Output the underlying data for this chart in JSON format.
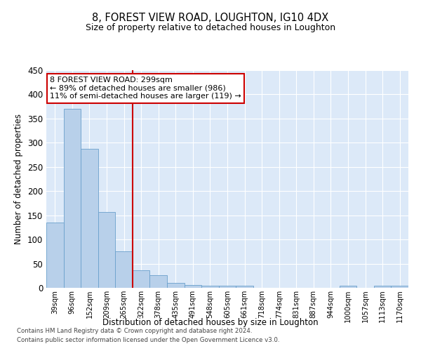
{
  "title": "8, FOREST VIEW ROAD, LOUGHTON, IG10 4DX",
  "subtitle": "Size of property relative to detached houses in Loughton",
  "xlabel": "Distribution of detached houses by size in Loughton",
  "ylabel": "Number of detached properties",
  "footnote1": "Contains HM Land Registry data © Crown copyright and database right 2024.",
  "footnote2": "Contains public sector information licensed under the Open Government Licence v3.0.",
  "annotation_line1": "8 FOREST VIEW ROAD: 299sqm",
  "annotation_line2": "← 89% of detached houses are smaller (986)",
  "annotation_line3": "11% of semi-detached houses are larger (119) →",
  "bar_labels": [
    "39sqm",
    "96sqm",
    "152sqm",
    "209sqm",
    "265sqm",
    "322sqm",
    "378sqm",
    "435sqm",
    "491sqm",
    "548sqm",
    "605sqm",
    "661sqm",
    "718sqm",
    "774sqm",
    "831sqm",
    "887sqm",
    "944sqm",
    "1000sqm",
    "1057sqm",
    "1113sqm",
    "1170sqm"
  ],
  "bar_values": [
    135,
    370,
    287,
    157,
    75,
    37,
    26,
    10,
    6,
    5,
    4,
    5,
    0,
    0,
    0,
    0,
    0,
    5,
    0,
    5,
    4
  ],
  "bar_color": "#b8d0ea",
  "bar_edge_color": "#6aa0cc",
  "vline_x": 4.5,
  "vline_color": "#cc0000",
  "annotation_box_color": "#cc0000",
  "background_color": "#dce9f8",
  "ylim": [
    0,
    450
  ],
  "yticks": [
    0,
    50,
    100,
    150,
    200,
    250,
    300,
    350,
    400,
    450
  ]
}
